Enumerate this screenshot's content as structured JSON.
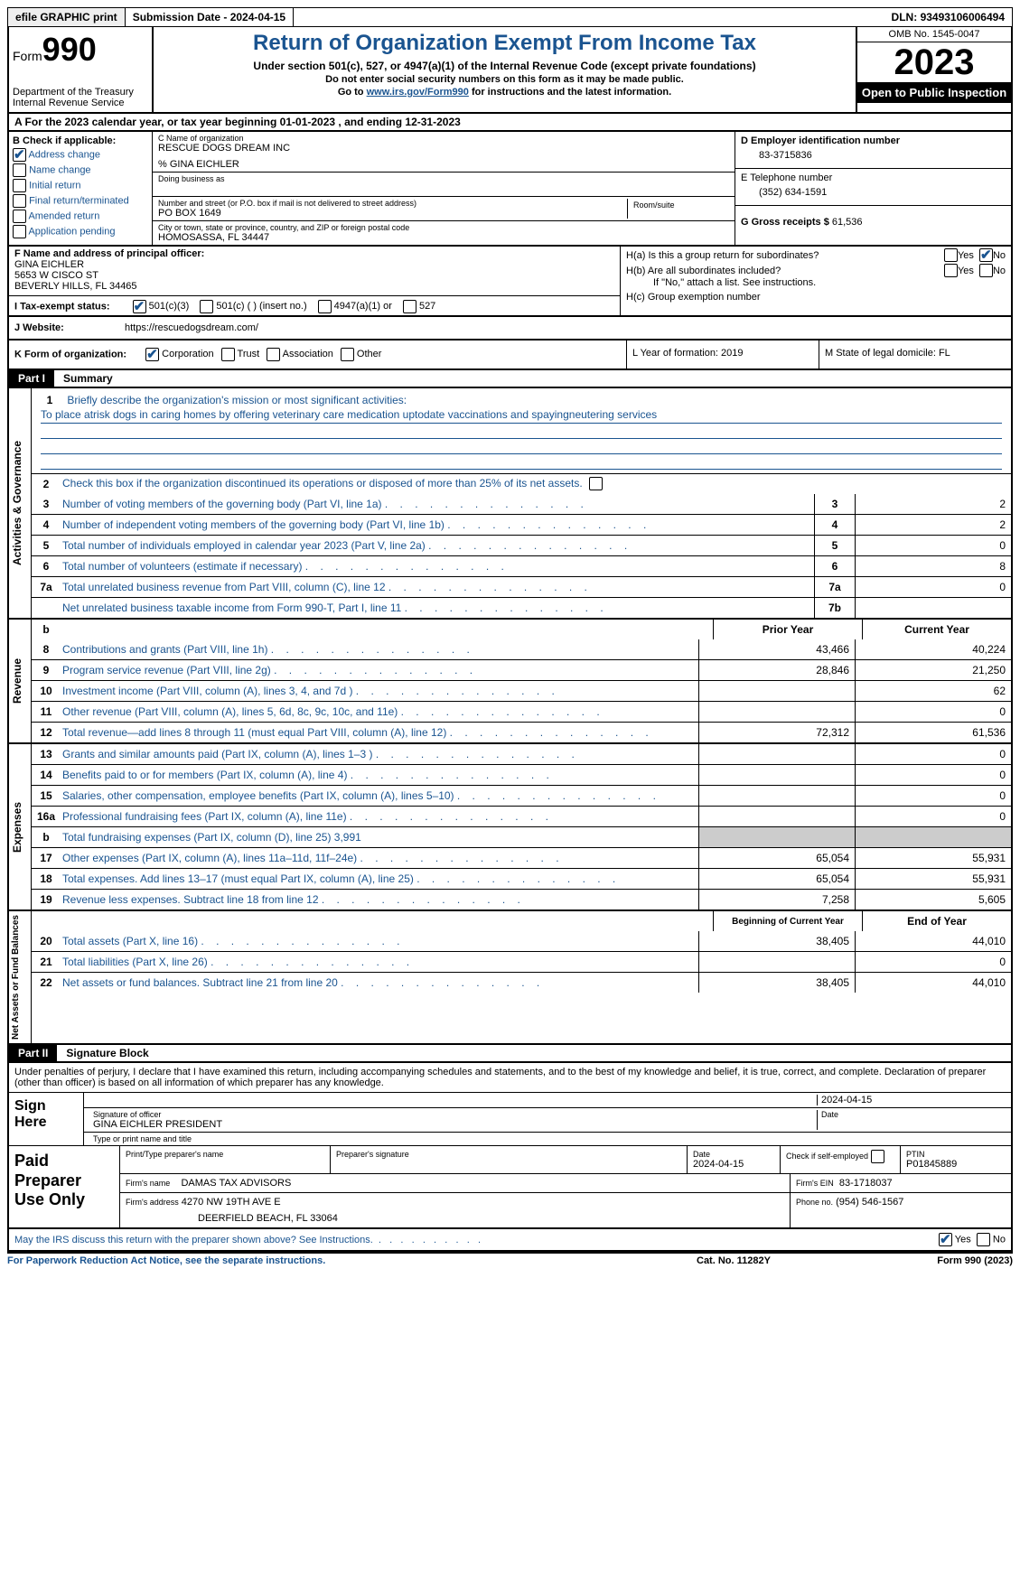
{
  "topbar": {
    "efile": "efile GRAPHIC print",
    "submission": "Submission Date - 2024-04-15",
    "dln_label": "DLN:",
    "dln": "93493106006494"
  },
  "header": {
    "form_word": "Form",
    "form_num": "990",
    "dept": "Department of the Treasury\nInternal Revenue Service",
    "title": "Return of Organization Exempt From Income Tax",
    "sub1": "Under section 501(c), 527, or 4947(a)(1) of the Internal Revenue Code (except private foundations)",
    "sub2": "Do not enter social security numbers on this form as it may be made public.",
    "sub3_pre": "Go to ",
    "sub3_link": "www.irs.gov/Form990",
    "sub3_post": " for instructions and the latest information.",
    "omb": "OMB No. 1545-0047",
    "year": "2023",
    "open": "Open to Public Inspection"
  },
  "rowA": {
    "text_pre": "A For the 2023 calendar year, or tax year beginning ",
    "begin": "01-01-2023",
    "mid": " , and ending ",
    "end": "12-31-2023"
  },
  "boxB": {
    "title": "B Check if applicable:",
    "items": [
      {
        "label": "Address change",
        "checked": true
      },
      {
        "label": "Name change",
        "checked": false
      },
      {
        "label": "Initial return",
        "checked": false
      },
      {
        "label": "Final return/terminated",
        "checked": false
      },
      {
        "label": "Amended return",
        "checked": false
      },
      {
        "label": "Application pending",
        "checked": false
      }
    ]
  },
  "boxC": {
    "name_label": "C Name of organization",
    "name": "RESCUE DOGS DREAM INC",
    "care": "% GINA EICHLER",
    "dba_label": "Doing business as",
    "addr_label": "Number and street (or P.O. box if mail is not delivered to street address)",
    "room_label": "Room/suite",
    "addr": "PO BOX 1649",
    "city_label": "City or town, state or province, country, and ZIP or foreign postal code",
    "city": "HOMOSASSA, FL  34447"
  },
  "boxD": {
    "label": "D Employer identification number",
    "val": "83-3715836"
  },
  "boxE": {
    "label": "E Telephone number",
    "val": "(352) 634-1591"
  },
  "boxG": {
    "label": "G Gross receipts $",
    "val": "61,536"
  },
  "boxF": {
    "label": "F  Name and address of principal officer:",
    "name": "GINA EICHLER",
    "addr1": "5653 W CISCO ST",
    "addr2": "BEVERLY HILLS, FL  34465"
  },
  "boxH": {
    "ha": "H(a)  Is this a group return for subordinates?",
    "ha_yes": false,
    "ha_no": true,
    "hb": "H(b)  Are all subordinates included?",
    "hb_note": "If \"No,\" attach a list. See instructions.",
    "hc": "H(c)  Group exemption number"
  },
  "rowI": {
    "label": "I  Tax-exempt status:",
    "opts": [
      {
        "label": "501(c)(3)",
        "checked": true
      },
      {
        "label": "501(c) (  ) (insert no.)",
        "checked": false
      },
      {
        "label": "4947(a)(1) or",
        "checked": false
      },
      {
        "label": "527",
        "checked": false
      }
    ]
  },
  "rowJ": {
    "label": "J  Website:",
    "url": "https://rescuedogsdream.com/"
  },
  "rowK": {
    "k1_label": "K Form of organization:",
    "opts": [
      {
        "label": "Corporation",
        "checked": true
      },
      {
        "label": "Trust",
        "checked": false
      },
      {
        "label": "Association",
        "checked": false
      },
      {
        "label": "Other",
        "checked": false
      }
    ],
    "l": "L Year of formation: 2019",
    "m": "M State of legal domicile: FL"
  },
  "part1": {
    "hdr": "Part I",
    "title": "Summary",
    "sections": {
      "gov": {
        "label": "Activities & Governance",
        "q1": "Briefly describe the organization's mission or most significant activities:",
        "mission": "To place atrisk dogs in caring homes by offering veterinary care medication uptodate vaccinations and spayingneutering services",
        "q2": "Check this box      if the organization discontinued its operations or disposed of more than 25% of its net assets.",
        "rows": [
          {
            "n": "3",
            "d": "Number of voting members of the governing body (Part VI, line 1a)",
            "box": "3",
            "val": "2"
          },
          {
            "n": "4",
            "d": "Number of independent voting members of the governing body (Part VI, line 1b)",
            "box": "4",
            "val": "2"
          },
          {
            "n": "5",
            "d": "Total number of individuals employed in calendar year 2023 (Part V, line 2a)",
            "box": "5",
            "val": "0"
          },
          {
            "n": "6",
            "d": "Total number of volunteers (estimate if necessary)",
            "box": "6",
            "val": "8"
          },
          {
            "n": "7a",
            "d": "Total unrelated business revenue from Part VIII, column (C), line 12",
            "box": "7a",
            "val": "0"
          },
          {
            "n": "",
            "d": "Net unrelated business taxable income from Form 990-T, Part I, line 11",
            "box": "7b",
            "val": ""
          }
        ]
      },
      "rev": {
        "label": "Revenue",
        "hdr_prior": "Prior Year",
        "hdr_curr": "Current Year",
        "rows": [
          {
            "n": "8",
            "d": "Contributions and grants (Part VIII, line 1h)",
            "p": "43,466",
            "c": "40,224"
          },
          {
            "n": "9",
            "d": "Program service revenue (Part VIII, line 2g)",
            "p": "28,846",
            "c": "21,250"
          },
          {
            "n": "10",
            "d": "Investment income (Part VIII, column (A), lines 3, 4, and 7d )",
            "p": "",
            "c": "62"
          },
          {
            "n": "11",
            "d": "Other revenue (Part VIII, column (A), lines 5, 6d, 8c, 9c, 10c, and 11e)",
            "p": "",
            "c": "0"
          },
          {
            "n": "12",
            "d": "Total revenue—add lines 8 through 11 (must equal Part VIII, column (A), line 12)",
            "p": "72,312",
            "c": "61,536"
          }
        ]
      },
      "exp": {
        "label": "Expenses",
        "rows": [
          {
            "n": "13",
            "d": "Grants and similar amounts paid (Part IX, column (A), lines 1–3 )",
            "p": "",
            "c": "0"
          },
          {
            "n": "14",
            "d": "Benefits paid to or for members (Part IX, column (A), line 4)",
            "p": "",
            "c": "0"
          },
          {
            "n": "15",
            "d": "Salaries, other compensation, employee benefits (Part IX, column (A), lines 5–10)",
            "p": "",
            "c": "0"
          },
          {
            "n": "16a",
            "d": "Professional fundraising fees (Part IX, column (A), line 11e)",
            "p": "",
            "c": "0"
          },
          {
            "n": "b",
            "d": "Total fundraising expenses (Part IX, column (D), line 25) 3,991",
            "p": "grey",
            "c": "grey"
          },
          {
            "n": "17",
            "d": "Other expenses (Part IX, column (A), lines 11a–11d, 11f–24e)",
            "p": "65,054",
            "c": "55,931"
          },
          {
            "n": "18",
            "d": "Total expenses. Add lines 13–17 (must equal Part IX, column (A), line 25)",
            "p": "65,054",
            "c": "55,931"
          },
          {
            "n": "19",
            "d": "Revenue less expenses. Subtract line 18 from line 12",
            "p": "7,258",
            "c": "5,605"
          }
        ]
      },
      "net": {
        "label": "Net Assets or Fund Balances",
        "hdr_begin": "Beginning of Current Year",
        "hdr_end": "End of Year",
        "rows": [
          {
            "n": "20",
            "d": "Total assets (Part X, line 16)",
            "p": "38,405",
            "c": "44,010"
          },
          {
            "n": "21",
            "d": "Total liabilities (Part X, line 26)",
            "p": "",
            "c": "0"
          },
          {
            "n": "22",
            "d": "Net assets or fund balances. Subtract line 21 from line 20",
            "p": "38,405",
            "c": "44,010"
          }
        ]
      }
    }
  },
  "part2": {
    "hdr": "Part II",
    "title": "Signature Block",
    "decl": "Under penalties of perjury, I declare that I have examined this return, including accompanying schedules and statements, and to the best of my knowledge and belief, it is true, correct, and complete. Declaration of preparer (other than officer) is based on all information of which preparer has any knowledge.",
    "sign_label": "Sign Here",
    "sig_of_officer": "Signature of officer",
    "officer_name": "GINA EICHLER  PRESIDENT",
    "type_label": "Type or print name and title",
    "date_label": "Date",
    "date": "2024-04-15",
    "paid_label": "Paid Preparer Use Only",
    "prep_name_label": "Print/Type preparer's name",
    "prep_sig_label": "Preparer's signature",
    "prep_date_label": "Date",
    "prep_date": "2024-04-15",
    "check_label": "Check        if self-employed",
    "ptin_label": "PTIN",
    "ptin": "P01845889",
    "firm_name_label": "Firm's name",
    "firm_name": "DAMAS TAX ADVISORS",
    "firm_ein_label": "Firm's EIN",
    "firm_ein": "83-1718037",
    "firm_addr_label": "Firm's address",
    "firm_addr1": "4270 NW 19TH AVE E",
    "firm_addr2": "DEERFIELD BEACH, FL  33064",
    "phone_label": "Phone no.",
    "phone": "(954) 546-1567",
    "discuss": "May the IRS discuss this return with the preparer shown above? See Instructions.",
    "discuss_yes": true
  },
  "footer": {
    "f1": "For Paperwork Reduction Act Notice, see the separate instructions.",
    "f2": "Cat. No. 11282Y",
    "f3": "Form 990 (2023)"
  }
}
